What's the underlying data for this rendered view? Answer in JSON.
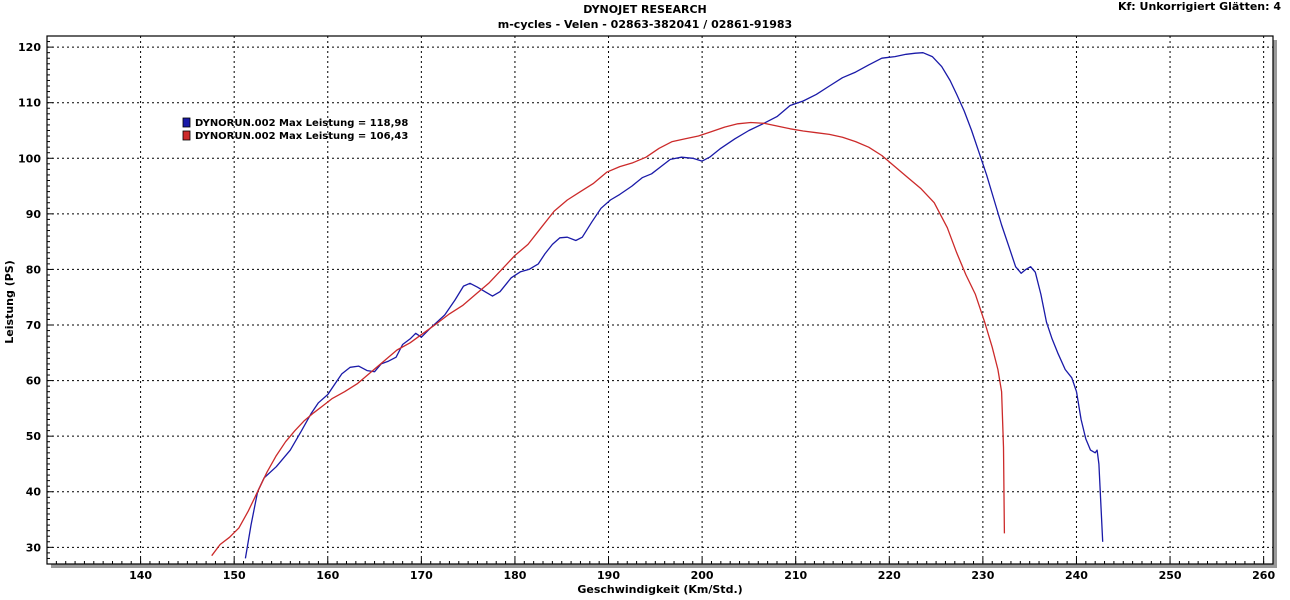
{
  "header": {
    "title": "DYNOJET RESEARCH",
    "subtitle": "m-cycles - Velen  - 02863-382041 / 02861-91983",
    "corner": "Kf: Unkorrigiert  Glätten: 4"
  },
  "chart_data": {
    "type": "line",
    "xlabel": "Geschwindigkeit (Km/Std.)",
    "ylabel": "Leistung (PS)",
    "xlim": [
      130,
      261
    ],
    "ylim": [
      27,
      122
    ],
    "xticks": [
      140,
      150,
      160,
      170,
      180,
      190,
      200,
      210,
      220,
      230,
      240,
      250,
      260
    ],
    "yticks": [
      30,
      40,
      50,
      60,
      70,
      80,
      90,
      100,
      110,
      120
    ],
    "grid": true,
    "legend_position": "top-left",
    "series": [
      {
        "name": "DYNORUN.002 Max Leistung = 118,98",
        "color": "#1a1aa8",
        "x": [
          151.2,
          151.8,
          152.5,
          153.2,
          154.5,
          156.0,
          157.2,
          158.2,
          159.0,
          160.0,
          160.8,
          161.5,
          162.4,
          163.3,
          164.2,
          165.0,
          165.7,
          166.5,
          167.3,
          168.0,
          168.8,
          169.4,
          170.0,
          171.0,
          172.5,
          173.6,
          174.5,
          175.2,
          176.0,
          176.8,
          177.6,
          178.4,
          179.6,
          180.6,
          181.5,
          182.5,
          183.2,
          184.0,
          184.8,
          185.6,
          186.5,
          187.2,
          188.2,
          189.2,
          190.2,
          191.2,
          192.5,
          193.6,
          194.6,
          195.6,
          196.6,
          197.8,
          199.0,
          200.0,
          200.8,
          202.0,
          203.5,
          205.0,
          206.5,
          208.0,
          209.4,
          210.8,
          212.2,
          213.6,
          215.0,
          216.4,
          217.8,
          219.2,
          220.6,
          221.8,
          222.8,
          223.6,
          224.6,
          225.6,
          226.5,
          227.2,
          228.0,
          228.8,
          229.6,
          230.4,
          231.2,
          232.0,
          232.8,
          233.5,
          234.1,
          234.6,
          235.1,
          235.6,
          236.2,
          236.8,
          237.4,
          238.0,
          238.8,
          239.5,
          240.0,
          240.5,
          241.0,
          241.5,
          242.0,
          242.2,
          242.4,
          242.6,
          242.8
        ],
        "y": [
          28,
          34,
          40,
          42.5,
          44.5,
          47.5,
          51,
          54,
          56,
          57.5,
          59.5,
          61.2,
          62.4,
          62.6,
          61.8,
          61.6,
          63,
          63.5,
          64.2,
          66.5,
          67.5,
          68.5,
          67.8,
          69.5,
          71.8,
          74.5,
          77,
          77.5,
          76.8,
          76,
          75.2,
          76,
          78.5,
          79.6,
          80,
          81,
          82.8,
          84.5,
          85.7,
          85.8,
          85.2,
          85.8,
          88.5,
          91,
          92.5,
          93.5,
          95,
          96.5,
          97.2,
          98.5,
          99.8,
          100.2,
          100,
          99.5,
          100.2,
          101.8,
          103.5,
          105,
          106.2,
          107.5,
          109.5,
          110.3,
          111.5,
          113,
          114.5,
          115.5,
          116.8,
          118,
          118.3,
          118.7,
          118.9,
          119,
          118.3,
          116.5,
          114,
          111.5,
          108.5,
          105,
          101,
          97,
          92.5,
          88,
          84,
          80.5,
          79.3,
          80,
          80.5,
          79.5,
          75.5,
          70.5,
          67.5,
          65,
          62,
          60.5,
          58,
          53,
          49.5,
          47.5,
          47,
          47.5,
          45,
          38,
          31
        ]
      },
      {
        "name": "DYNORUN.002 Max Leistung = 106,43",
        "color": "#cc2a2a",
        "x": [
          147.6,
          148.5,
          149.5,
          150.5,
          151.5,
          152.5,
          153.5,
          154.5,
          155.5,
          156.5,
          157.5,
          158.5,
          159.5,
          160.5,
          161.8,
          163.2,
          164.6,
          166.0,
          167.4,
          168.8,
          170.2,
          171.6,
          173.0,
          174.4,
          175.8,
          177.2,
          178.6,
          180.0,
          181.4,
          182.8,
          184.2,
          185.6,
          187.0,
          188.4,
          189.8,
          191.2,
          192.6,
          194.0,
          195.4,
          196.8,
          198.2,
          199.6,
          201.0,
          202.4,
          203.8,
          205.2,
          206.6,
          208.0,
          209.4,
          210.8,
          212.2,
          213.6,
          215.0,
          216.4,
          217.8,
          219.2,
          220.6,
          222.0,
          223.4,
          224.8,
          226.2,
          227.2,
          228.2,
          229.2,
          230.2,
          231.0,
          231.6,
          232.0,
          232.2,
          232.3
        ],
        "y": [
          28.5,
          30.5,
          31.8,
          33.5,
          36.5,
          40,
          43.5,
          46.5,
          49,
          51,
          52.8,
          54.2,
          55.5,
          56.8,
          58,
          59.5,
          61.5,
          63.5,
          65.5,
          66.8,
          68.5,
          70.2,
          72,
          73.5,
          75.5,
          77.5,
          80,
          82.5,
          84.5,
          87.5,
          90.5,
          92.5,
          94,
          95.5,
          97.5,
          98.5,
          99.2,
          100.2,
          101.8,
          103,
          103.5,
          104,
          104.8,
          105.6,
          106.2,
          106.43,
          106.3,
          105.8,
          105.3,
          104.9,
          104.6,
          104.3,
          103.8,
          103,
          102,
          100.5,
          98.5,
          96.5,
          94.5,
          92,
          87.5,
          83,
          79,
          75.5,
          70.5,
          66,
          62,
          58,
          48,
          32.5
        ]
      }
    ]
  }
}
